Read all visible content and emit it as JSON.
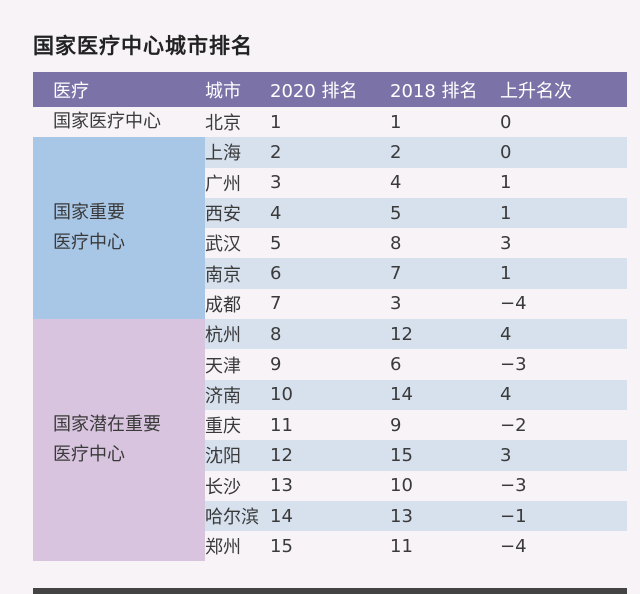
{
  "title": "国家医疗中心城市排名",
  "headers": [
    "医疗",
    "城市",
    "2020 排名",
    "2018 排名",
    "上升名次"
  ],
  "groups": [
    {
      "label_lines": [
        "国家医疗中心"
      ],
      "color": "#f7f3f7",
      "rows": [
        [
          "北京",
          "1",
          "1",
          "0"
        ]
      ]
    },
    {
      "label_lines": [
        "国家重要",
        "医疗中心"
      ],
      "color": "#a8c6e6",
      "rows": [
        [
          "上海",
          "2",
          "2",
          "0"
        ],
        [
          "广州",
          "3",
          "4",
          "1"
        ],
        [
          "西安",
          "4",
          "5",
          "1"
        ],
        [
          "武汉",
          "5",
          "8",
          "3"
        ],
        [
          "南京",
          "6",
          "7",
          "1"
        ],
        [
          "成都",
          "7",
          "3",
          "−4"
        ]
      ]
    },
    {
      "label_lines": [
        "国家潜在重要",
        "医疗中心"
      ],
      "color": "#d8c4de",
      "rows": [
        [
          "杭州",
          "8",
          "12",
          "4"
        ],
        [
          "天津",
          "9",
          "6",
          "−3"
        ],
        [
          "济南",
          "10",
          "14",
          "4"
        ],
        [
          "重庆",
          "11",
          "9",
          "−2"
        ],
        [
          "沈阳",
          "12",
          "15",
          "3"
        ],
        [
          "长沙",
          "13",
          "10",
          "−3"
        ],
        [
          "哈尔滨",
          "14",
          "13",
          "−1"
        ],
        [
          "郑州",
          "15",
          "11",
          "−4"
        ]
      ]
    }
  ],
  "colors": {
    "header": "#7b72a8",
    "stripe": "#d7e1ee"
  }
}
